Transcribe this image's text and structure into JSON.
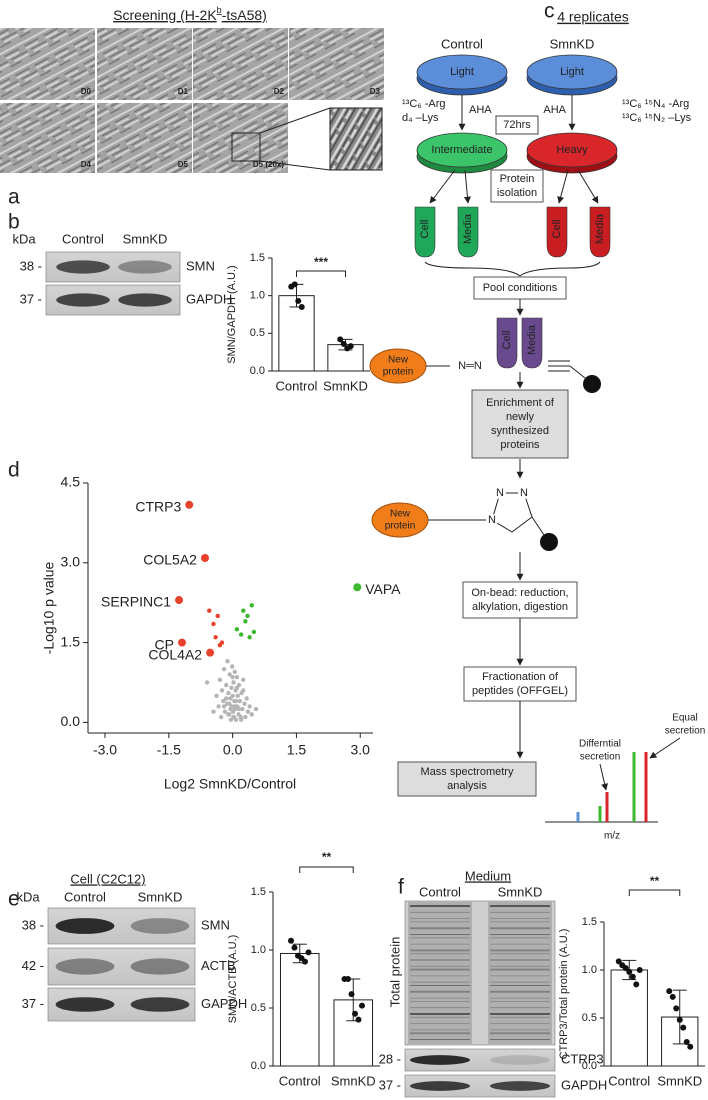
{
  "panel_labels": [
    "a",
    "b",
    "c",
    "d",
    "e",
    "f"
  ],
  "panel_a": {
    "title": {
      "main": "Screening (H-2K",
      "sup": "b",
      "rest": "-tsA58)"
    },
    "images": [
      "D0",
      "D1",
      "D2",
      "D3",
      "D4",
      "D5",
      "D5 (20x)"
    ]
  },
  "panel_b": {
    "blot": {
      "unit": "kDa",
      "lanes": [
        "Control",
        "SmnKD"
      ],
      "rows": [
        {
          "marker": "38 -",
          "label": "SMN"
        },
        {
          "marker": "37 -",
          "label": "GAPDH"
        }
      ]
    }
  },
  "panel_c": {
    "title": "4 replicates",
    "conditions": [
      "Control",
      "SmnKD"
    ],
    "dishes": [
      "Light",
      "Light",
      "Intermediate",
      "Heavy"
    ],
    "light_labels": [
      "¹³C₆ -Arg",
      "d₄ –Lys"
    ],
    "heavy_labels": [
      "¹³C₆ ¹⁵N₄ -Arg",
      "¹³C₆ ¹⁵N₂ –Lys"
    ],
    "aha": [
      "AHA",
      "AHA"
    ],
    "duration": "72hrs",
    "steps": [
      [
        "Protein",
        "isolation"
      ],
      [
        "Pool conditions"
      ],
      [
        "Enrichment of",
        "newly",
        "synthesized",
        "proteins"
      ],
      [
        "On-bead: reduction,",
        "alkylation, digestion"
      ],
      [
        "Fractionation of",
        "peptides (OFFGEL)"
      ],
      [
        "Mass spectrometry",
        "analysis"
      ]
    ],
    "tubes": [
      "Cell",
      "Media",
      "Cell",
      "Media",
      "Cell",
      "Media"
    ],
    "new_protein": [
      [
        "New",
        "protein"
      ],
      [
        "New",
        "protein"
      ]
    ],
    "azide": "N═N",
    "triazole": [
      "N",
      "N",
      "N"
    ],
    "peaks": [
      [
        "Differntial",
        "secretion"
      ],
      [
        "Equal",
        "secretion"
      ]
    ],
    "axis": "m/z"
  },
  "panel_e": {
    "blot": {
      "title": "Cell (C2C12)",
      "unit": "kDa",
      "lanes": [
        "Control",
        "SmnKD"
      ],
      "rows": [
        {
          "marker": "38 -",
          "label": "SMN"
        },
        {
          "marker": "42 -",
          "label": "ACTB"
        },
        {
          "marker": "37 -",
          "label": "GAPDH"
        }
      ]
    }
  },
  "panel_f": {
    "blot": {
      "title": "Medium",
      "lanes": [
        "Control",
        "SmnKD"
      ],
      "side_label": "Total protein",
      "rows": [
        {
          "marker": "28 -",
          "label": "CTRP3"
        },
        {
          "marker": "37 -",
          "label": "GAPDH"
        }
      ]
    }
  },
  "chart_data": [
    {
      "type": "bar",
      "ylabel": "SMN/GAPDH (A.U.)",
      "categories": [
        "Control",
        "SmnKD"
      ],
      "values": [
        1.0,
        0.35
      ],
      "errors": [
        0.15,
        0.07
      ],
      "points": [
        [
          1.12,
          1.15,
          0.93,
          0.85
        ],
        [
          0.42,
          0.36,
          0.3,
          0.33
        ]
      ],
      "significance": "***",
      "color": "#ffffff",
      "ylim": [
        0,
        1.5
      ],
      "yticks": [
        {
          "value": 0,
          "label": "0.0"
        },
        0.5,
        {
          "value": 1,
          "label": "1.0"
        },
        1.5
      ]
    },
    {
      "type": "scatter",
      "ylabel": "-Log10 p value",
      "xlabel": "Log2 SmnKD/Control",
      "xlim": [
        -3.4,
        3.3
      ],
      "ylim": [
        -0.2,
        4.5
      ],
      "xticks": [
        {
          "value": -3,
          "label": "-3.0"
        },
        -1.5,
        {
          "value": 0,
          "label": "0.0"
        },
        1.5,
        {
          "value": 3,
          "label": "3.0"
        }
      ],
      "yticks": [
        {
          "value": 0,
          "label": "0.0"
        },
        1.5,
        {
          "value": 3,
          "label": "3.0"
        },
        4.5
      ],
      "series": [
        {
          "color": "#e8412c",
          "marker_size": 4,
          "x": [
            -1.02,
            -0.65,
            -1.26,
            -1.19,
            -0.53
          ],
          "values": [
            4.09,
            3.09,
            2.3,
            1.5,
            1.31
          ],
          "labels": [
            "CTRP3",
            "COL5A2",
            "SERPINC1",
            "CP",
            "COL4A2"
          ]
        },
        {
          "color": "#3cb82e",
          "marker_size": 4,
          "x": [
            2.93
          ],
          "values": [
            2.54
          ],
          "labels": [
            "VAPA"
          ]
        },
        {
          "color": "#e8412c",
          "marker_size": 2.2,
          "x": [
            -0.55,
            -0.45,
            -0.4,
            -0.3,
            -0.25,
            -0.35
          ],
          "values": [
            2.1,
            1.85,
            1.6,
            1.45,
            1.5,
            2.0
          ]
        },
        {
          "color": "#3cb82e",
          "marker_size": 2.2,
          "x": [
            0.1,
            0.2,
            0.25,
            0.3,
            0.35,
            0.4,
            0.45,
            0.5
          ],
          "values": [
            1.75,
            1.65,
            2.1,
            1.9,
            2.0,
            1.6,
            2.2,
            1.7
          ]
        },
        {
          "color": "#b5b5b5",
          "marker_size": 2.2,
          "x": [
            -0.45,
            -0.38,
            -0.33,
            -0.3,
            -0.27,
            -0.25,
            -0.22,
            -0.2,
            -0.18,
            -0.15,
            -0.13,
            -0.12,
            -0.1,
            -0.08,
            -0.07,
            -0.05,
            -0.04,
            -0.03,
            -0.02,
            -0.01,
            0,
            0.01,
            0.02,
            0.03,
            0.04,
            0.05,
            0.06,
            0.07,
            0.08,
            0.1,
            0.11,
            0.12,
            0.14,
            0.15,
            0.17,
            0.19,
            0.21,
            0.23,
            0.25,
            0.28,
            0.3,
            0.33,
            0.36,
            0.4,
            0.45,
            -0.6,
            0.55,
            -0.1,
            0.05,
            0.15,
            -0.2,
            0,
            0.1,
            -0.05,
            0.2,
            -0.15,
            0.25,
            0.02,
            -0.08,
            0.08
          ],
          "values": [
            0.2,
            0.5,
            0.3,
            0.8,
            0.1,
            0.6,
            0.4,
            1.0,
            0.2,
            0.7,
            0.35,
            1.15,
            0.55,
            0.15,
            0.9,
            0.45,
            0.05,
            0.65,
            0.3,
            1.05,
            0.5,
            0.2,
            0.75,
            0.1,
            0.4,
            0.95,
            0.25,
            0.6,
            0.05,
            0.85,
            0.3,
            0.5,
            0.15,
            0.7,
            0.4,
            0.1,
            0.55,
            0.25,
            0.8,
            0.35,
            0.1,
            0.45,
            0.2,
            0.3,
            0.15,
            0.75,
            0.25,
            0.15,
            0.3,
            0.25,
            0.3,
            0.85,
            0.65,
            0.25,
            0.05,
            0.45,
            0.6,
            0.1,
            0.35,
            0.4
          ]
        }
      ]
    },
    {
      "type": "bar",
      "ylabel": "SMN/ACTB (A.U.)",
      "categories": [
        "Control",
        "SmnKD"
      ],
      "values": [
        0.97,
        0.57
      ],
      "errors": [
        0.08,
        0.18
      ],
      "points": [
        [
          1.08,
          1.02,
          0.95,
          0.93,
          0.9,
          0.98
        ],
        [
          0.75,
          0.75,
          0.62,
          0.45,
          0.4,
          0.52
        ]
      ],
      "significance": "**",
      "color": "#ffffff",
      "ylim": [
        0,
        1.5
      ],
      "yticks": [
        {
          "value": 0,
          "label": "0.0"
        },
        0.5,
        {
          "value": 1,
          "label": "1.0"
        },
        1.5
      ]
    },
    {
      "type": "bar",
      "ylabel": "CTRP3/Total protein (A.U.)",
      "categories": [
        "Control",
        "SmnKD"
      ],
      "values": [
        1.0,
        0.51
      ],
      "errors": [
        0.1,
        0.28
      ],
      "points": [
        [
          1.09,
          1.05,
          1.02,
          0.98,
          0.93,
          0.85,
          1.0
        ],
        [
          0.78,
          0.72,
          0.6,
          0.48,
          0.4,
          0.25,
          0.2
        ]
      ],
      "significance": "**",
      "color": "#ffffff",
      "ylim": [
        0,
        1.5
      ],
      "yticks": [
        {
          "value": 0,
          "label": "0.0"
        },
        0.5,
        {
          "value": 1,
          "label": "1.0"
        },
        1.5
      ]
    }
  ]
}
